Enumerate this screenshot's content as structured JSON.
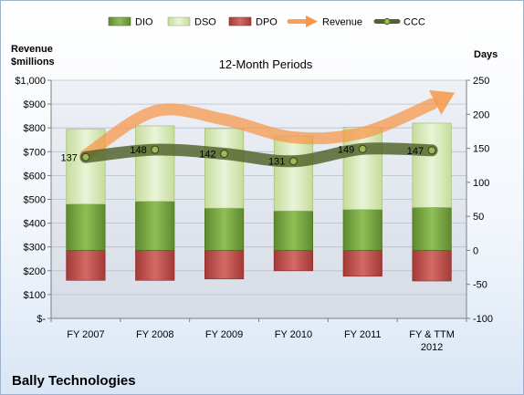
{
  "company": "Bally Technologies",
  "chart_data": {
    "type": "bar",
    "title": "12-Month Periods",
    "categories": [
      "FY 2007",
      "FY 2008",
      "FY 2009",
      "FY 2010",
      "FY 2011",
      "FY & TTM 2012"
    ],
    "left_axis": {
      "label": "Revenue $millions",
      "label_lines": [
        "Revenue",
        "$millions"
      ],
      "ticks": [
        "$-",
        "$100",
        "$200",
        "$300",
        "$400",
        "$500",
        "$600",
        "$700",
        "$800",
        "$900",
        "$1,000"
      ],
      "range": [
        0,
        1000
      ]
    },
    "right_axis": {
      "label": "Days",
      "ticks": [
        "-100",
        "-50",
        "0",
        "50",
        "100",
        "150",
        "200",
        "250"
      ],
      "range": [
        -100,
        250
      ]
    },
    "legend": {
      "placement": "top",
      "items": [
        {
          "name": "DIO",
          "swatch": "bar",
          "color": "#76a244"
        },
        {
          "name": "DSO",
          "swatch": "bar",
          "color": "#d7e8b8"
        },
        {
          "name": "DPO",
          "swatch": "bar",
          "color": "#c0504d"
        },
        {
          "name": "Revenue",
          "swatch": "arrow",
          "color": "#f79646"
        },
        {
          "name": "CCC",
          "swatch": "line",
          "color": "#4f6228"
        }
      ]
    },
    "series": [
      {
        "name": "DIO",
        "axis": "right",
        "color": "#76a244",
        "values": [
          68,
          72,
          62,
          58,
          60,
          63
        ]
      },
      {
        "name": "DSO",
        "axis": "right",
        "color": "#d7e8b8",
        "values": [
          110,
          111,
          117,
          110,
          121,
          124
        ]
      },
      {
        "name": "DPO",
        "axis": "right",
        "color": "#c0504d",
        "values": [
          -44,
          -44,
          -42,
          -30,
          -38,
          -45
        ]
      },
      {
        "name": "Revenue",
        "axis": "left",
        "color": "#f79646",
        "values": [
          685,
          870,
          835,
          760,
          780,
          900
        ]
      },
      {
        "name": "CCC",
        "axis": "right",
        "color": "#4f6228",
        "values": [
          137,
          148,
          142,
          131,
          149,
          147
        ],
        "labels": [
          "137",
          "148",
          "142",
          "131",
          "149",
          "147"
        ]
      }
    ],
    "grid": true
  }
}
